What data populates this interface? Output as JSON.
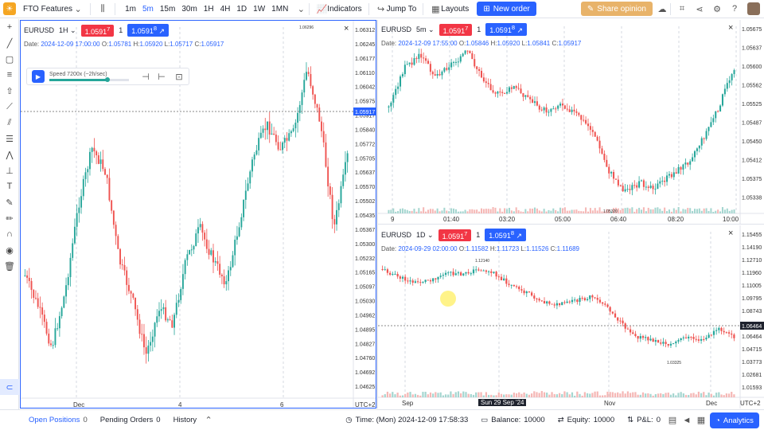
{
  "topbar": {
    "workspace": "FTO Features",
    "timeframes": [
      "1m",
      "5m",
      "15m",
      "30m",
      "1H",
      "4H",
      "1D",
      "1W",
      "1MN"
    ],
    "active_timeframe": "5m",
    "indicators": "Indicators",
    "jump_to": "Jump To",
    "layouts": "Layouts",
    "new_order": "New order",
    "share": "Share opinion"
  },
  "panes": {
    "left": {
      "symbol": "EURUSD",
      "timeframe": "1H",
      "sell_price": "1.0591",
      "sell_sup": "7",
      "qty": "1",
      "buy_price": "1.0591",
      "buy_sup": "8",
      "date": "2024-12-09 17:00:00",
      "o": "1.05781",
      "h": "1.05920",
      "l": "1.05717",
      "c": "1.05917",
      "speed": "Speed 7200x (~2h/sec)",
      "price_axis": [
        "1.06312",
        "1.06245",
        "1.06177",
        "1.06110",
        "1.06042",
        "1.05975",
        "1.05917",
        "1.05840",
        "1.05772",
        "1.05705",
        "1.05637",
        "1.05570",
        "1.05502",
        "1.05435",
        "1.05367",
        "1.05300",
        "1.05232",
        "1.05165",
        "1.05097",
        "1.05030",
        "1.04962",
        "1.04895",
        "1.04827",
        "1.04760",
        "1.04692",
        "1.04625"
      ],
      "time_axis": [
        "Dec",
        "4",
        "6"
      ],
      "tz": "UTC+2",
      "high_label": "1.06296",
      "current_price": "1.05917"
    },
    "top_right": {
      "symbol": "EURUSD",
      "timeframe": "5m",
      "sell_price": "1.0591",
      "sell_sup": "7",
      "qty": "1",
      "buy_price": "1.0591",
      "buy_sup": "8",
      "date": "2024-12-09 17:55:00",
      "o": "1.05846",
      "h": "1.05920",
      "l": "1.05841",
      "c": "1.05917",
      "price_axis": [
        "1.05675",
        "1.05637",
        "1.05600",
        "1.05562",
        "1.05525",
        "1.05487",
        "1.05450",
        "1.05412",
        "1.05375",
        "1.05338"
      ],
      "time_axis": [
        "9",
        "01:40",
        "03:20",
        "05:00",
        "06:40",
        "08:20",
        "10:00"
      ],
      "low_label": "1.05320"
    },
    "bottom_right": {
      "symbol": "EURUSD",
      "timeframe": "1D",
      "sell_price": "1.0591",
      "sell_sup": "7",
      "qty": "1",
      "buy_price": "1.0591",
      "buy_sup": "8",
      "date": "2024-09-29 02:00:00",
      "o": "1.11582",
      "h": "1.11723",
      "l": "1.11526",
      "c": "1.11689",
      "price_axis": [
        "1.15455",
        "1.14190",
        "1.12710",
        "1.11960",
        "1.11005",
        "1.09795",
        "1.08743",
        "1.07656",
        "1.06464",
        "1.04715",
        "1.03773",
        "1.02681",
        "1.01593"
      ],
      "time_axis": [
        "Sep",
        "Sun 29 Sep '24",
        "Nov",
        "Dec"
      ],
      "tz": "UTC+2",
      "high_label": "1.12140",
      "low_label": "1.03325",
      "current_price": "1.06464"
    }
  },
  "bottombar": {
    "open_positions": "Open Positions",
    "open_positions_count": "0",
    "pending_orders": "Pending Orders",
    "pending_orders_count": "0",
    "history": "History",
    "time": "Time: (Mon) 2024-12-09 17:58:33",
    "balance_label": "Balance:",
    "balance": "10000",
    "equity_label": "Equity:",
    "equity": "10000",
    "pnl_label": "P&L:",
    "pnl": "0",
    "analytics": "Analytics"
  },
  "colors": {
    "up": "#26a69a",
    "down": "#ef5350",
    "accent": "#2962ff"
  }
}
